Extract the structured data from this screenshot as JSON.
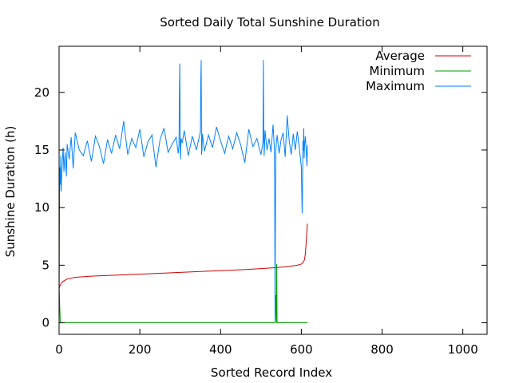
{
  "chart_data": {
    "type": "line",
    "title": "Sorted Daily Total Sunshine Duration",
    "xlabel": "Sorted Record Index",
    "ylabel": "Sunshine Duration (h)",
    "xlim": [
      0,
      1060
    ],
    "ylim": [
      -1,
      24
    ],
    "xticks": [
      0,
      200,
      400,
      600,
      800,
      1000
    ],
    "yticks": [
      0,
      5,
      10,
      15,
      20
    ],
    "legend_position": "top-right",
    "grid": false,
    "series": [
      {
        "name": "Average",
        "color": "#d40000",
        "x": [
          0,
          2,
          5,
          10,
          20,
          40,
          80,
          150,
          250,
          350,
          450,
          520,
          560,
          590,
          600,
          605,
          608,
          610,
          612,
          614,
          615
        ],
        "y": [
          3.0,
          3.2,
          3.4,
          3.6,
          3.8,
          3.95,
          4.05,
          4.15,
          4.3,
          4.45,
          4.6,
          4.75,
          4.85,
          5.0,
          5.1,
          5.25,
          5.5,
          6.0,
          7.0,
          8.0,
          8.6
        ]
      },
      {
        "name": "Minimum",
        "color": "#00a000",
        "x": [
          0,
          1,
          2,
          3,
          4,
          534,
          535,
          536,
          537,
          538,
          539,
          540,
          615
        ],
        "y": [
          3.0,
          2.0,
          1.0,
          0.0,
          0.0,
          0.0,
          0.2,
          1.5,
          2.4,
          0.0,
          5.1,
          0.0,
          0.0
        ]
      },
      {
        "name": "Maximum",
        "color": "#0080ff",
        "x": [
          0,
          1,
          2,
          3,
          4,
          5,
          8,
          10,
          12,
          15,
          18,
          20,
          25,
          30,
          35,
          40,
          50,
          60,
          70,
          80,
          90,
          100,
          110,
          120,
          130,
          140,
          150,
          160,
          170,
          180,
          190,
          200,
          210,
          220,
          230,
          240,
          250,
          260,
          270,
          280,
          290,
          295,
          297,
          298,
          299,
          300,
          301,
          302,
          305,
          310,
          320,
          330,
          340,
          350,
          351,
          352,
          353,
          354,
          355,
          360,
          370,
          380,
          390,
          400,
          410,
          420,
          430,
          440,
          450,
          460,
          470,
          480,
          490,
          500,
          505,
          506,
          507,
          508,
          509,
          510,
          515,
          520,
          525,
          530,
          533,
          534,
          535,
          536,
          537,
          538,
          540,
          545,
          550,
          555,
          560,
          565,
          570,
          575,
          580,
          585,
          590,
          595,
          600,
          602,
          603,
          604,
          605,
          606,
          607,
          608,
          610,
          612,
          614,
          615
        ],
        "y": [
          0.5,
          10.5,
          13.5,
          12.0,
          14.5,
          11.4,
          14.0,
          15.2,
          13.1,
          14.8,
          12.7,
          15.5,
          14.2,
          16.1,
          13.4,
          16.5,
          15.0,
          14.5,
          15.8,
          14.0,
          16.2,
          15.3,
          13.8,
          15.9,
          14.7,
          16.3,
          15.1,
          17.5,
          14.6,
          16.0,
          15.2,
          16.8,
          14.4,
          15.7,
          16.3,
          13.5,
          15.9,
          16.9,
          14.8,
          15.5,
          16.1,
          14.7,
          15.4,
          20.1,
          22.5,
          15.3,
          14.2,
          16.0,
          15.6,
          16.7,
          14.5,
          16.2,
          15.0,
          16.6,
          21.0,
          22.8,
          14.6,
          15.1,
          16.4,
          14.9,
          16.3,
          15.2,
          17.0,
          15.8,
          14.7,
          16.2,
          15.1,
          16.5,
          15.4,
          13.9,
          16.8,
          15.3,
          16.0,
          14.6,
          15.7,
          22.8,
          16.2,
          14.5,
          15.5,
          16.7,
          15.0,
          16.0,
          14.8,
          17.2,
          15.3,
          12.0,
          0.2,
          10.0,
          14.9,
          15.6,
          16.3,
          14.7,
          15.9,
          16.5,
          14.4,
          18.0,
          15.8,
          14.6,
          16.4,
          15.0,
          16.6,
          15.2,
          13.5,
          9.5,
          12.0,
          15.8,
          14.9,
          16.9,
          14.3,
          15.5,
          16.2,
          15.0,
          13.6,
          15.4
        ]
      }
    ]
  }
}
